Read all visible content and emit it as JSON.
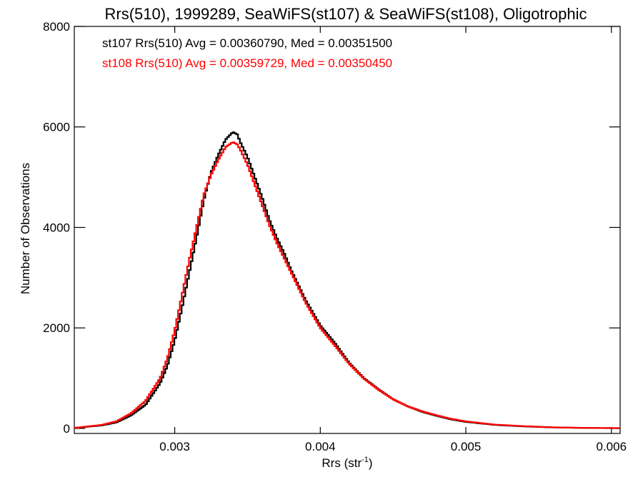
{
  "chart_data": {
    "type": "line",
    "title": "Rrs(510), 1999289, SeaWiFS(st107) & SeaWiFS(st108), Oligotrophic",
    "xlabel_main": "Rrs (str",
    "xlabel_sup": "-1",
    "xlabel_close": ")",
    "ylabel": "Number of Observations",
    "xlim": [
      0.00231,
      0.00606
    ],
    "ylim": [
      -100,
      8000
    ],
    "xticks": [
      0.003,
      0.004,
      0.005,
      0.006
    ],
    "xtick_labels": [
      "0.003",
      "0.004",
      "0.005",
      "0.006"
    ],
    "yticks": [
      0,
      2000,
      4000,
      6000,
      8000
    ],
    "ytick_labels": [
      "0",
      "2000",
      "4000",
      "6000",
      "8000"
    ],
    "grid": false,
    "legend_placement": "top-left",
    "bin_width": 1.25e-05,
    "series": [
      {
        "name": "st107",
        "color": "#000000",
        "legend_text": "st107 Rrs(510) Avg = 0.00360790, Med = 0.00351500",
        "points": [
          [
            0.00231,
            10
          ],
          [
            0.0025,
            60
          ],
          [
            0.0026,
            120
          ],
          [
            0.0027,
            260
          ],
          [
            0.0028,
            470
          ],
          [
            0.0029,
            900
          ],
          [
            0.00295,
            1250
          ],
          [
            0.003,
            1750
          ],
          [
            0.00305,
            2400
          ],
          [
            0.0031,
            3100
          ],
          [
            0.00315,
            3800
          ],
          [
            0.0032,
            4550
          ],
          [
            0.00325,
            5100
          ],
          [
            0.0033,
            5450
          ],
          [
            0.00335,
            5750
          ],
          [
            0.0034,
            5900
          ],
          [
            0.00343,
            5850
          ],
          [
            0.00345,
            5700
          ],
          [
            0.0035,
            5400
          ],
          [
            0.00355,
            5000
          ],
          [
            0.0036,
            4600
          ],
          [
            0.00365,
            4150
          ],
          [
            0.0037,
            3800
          ],
          [
            0.00375,
            3500
          ],
          [
            0.0038,
            3150
          ],
          [
            0.00385,
            2850
          ],
          [
            0.0039,
            2550
          ],
          [
            0.00395,
            2300
          ],
          [
            0.004,
            2050
          ],
          [
            0.0041,
            1700
          ],
          [
            0.0042,
            1300
          ],
          [
            0.0043,
            1000
          ],
          [
            0.0044,
            780
          ],
          [
            0.0045,
            580
          ],
          [
            0.0046,
            440
          ],
          [
            0.0047,
            330
          ],
          [
            0.0048,
            250
          ],
          [
            0.0049,
            180
          ],
          [
            0.005,
            130
          ],
          [
            0.0052,
            70
          ],
          [
            0.0054,
            40
          ],
          [
            0.0056,
            20
          ],
          [
            0.0058,
            10
          ],
          [
            0.00606,
            5
          ]
        ]
      },
      {
        "name": "st108",
        "color": "#ff0000",
        "legend_text": "st108 Rrs(510) Avg = 0.00359729, Med = 0.00350450",
        "points": [
          [
            0.00231,
            10
          ],
          [
            0.0025,
            70
          ],
          [
            0.0026,
            140
          ],
          [
            0.0027,
            300
          ],
          [
            0.0028,
            550
          ],
          [
            0.0029,
            1000
          ],
          [
            0.00295,
            1400
          ],
          [
            0.003,
            1950
          ],
          [
            0.00305,
            2650
          ],
          [
            0.0031,
            3350
          ],
          [
            0.00315,
            4000
          ],
          [
            0.0032,
            4650
          ],
          [
            0.00325,
            5050
          ],
          [
            0.0033,
            5350
          ],
          [
            0.00335,
            5600
          ],
          [
            0.0034,
            5700
          ],
          [
            0.00343,
            5650
          ],
          [
            0.00345,
            5550
          ],
          [
            0.0035,
            5250
          ],
          [
            0.00355,
            4850
          ],
          [
            0.0036,
            4450
          ],
          [
            0.00365,
            4050
          ],
          [
            0.0037,
            3700
          ],
          [
            0.00375,
            3400
          ],
          [
            0.0038,
            3100
          ],
          [
            0.00385,
            2800
          ],
          [
            0.0039,
            2500
          ],
          [
            0.00395,
            2250
          ],
          [
            0.004,
            2000
          ],
          [
            0.0041,
            1650
          ],
          [
            0.0042,
            1280
          ],
          [
            0.0043,
            990
          ],
          [
            0.0044,
            770
          ],
          [
            0.0045,
            580
          ],
          [
            0.0046,
            440
          ],
          [
            0.0047,
            340
          ],
          [
            0.0048,
            260
          ],
          [
            0.0049,
            190
          ],
          [
            0.005,
            140
          ],
          [
            0.0052,
            75
          ],
          [
            0.0054,
            45
          ],
          [
            0.0056,
            22
          ],
          [
            0.0058,
            12
          ],
          [
            0.00606,
            6
          ]
        ]
      }
    ]
  }
}
